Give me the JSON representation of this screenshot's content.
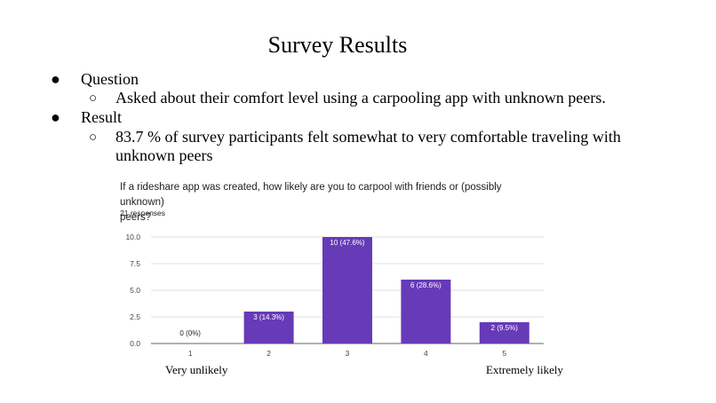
{
  "slide": {
    "title": "Survey Results",
    "bullets": [
      {
        "text": "Question",
        "sub": [
          "Asked about their comfort level using a carpooling app with unknown peers."
        ]
      },
      {
        "text": "Result",
        "sub": [
          "83.7 % of survey participants felt somewhat to very comfortable traveling with",
          "unknown peers"
        ]
      }
    ],
    "bullet_glyph": "●",
    "sub_bullet_glyph": "○",
    "scale_low_label": "Very unlikely",
    "scale_high_label": "Extremely likely"
  },
  "chart_data": {
    "type": "bar",
    "title_line1": "If a rideshare app was created, how likely are you to carpool with friends or (possibly unknown)",
    "title_line2": "peers?",
    "subtitle": "21 responses",
    "categories": [
      "1",
      "2",
      "3",
      "4",
      "5"
    ],
    "values": [
      0,
      3,
      10,
      6,
      2
    ],
    "data_labels": [
      "0 (0%)",
      "3 (14.3%)",
      "10 (47.6%)",
      "6 (28.6%)",
      "2 (9.5%)"
    ],
    "ylim": [
      0,
      10
    ],
    "yticks": [
      "0.0",
      "2.5",
      "5.0",
      "7.5",
      "10.0"
    ],
    "grid": true,
    "bar_color": "#673ab7"
  }
}
